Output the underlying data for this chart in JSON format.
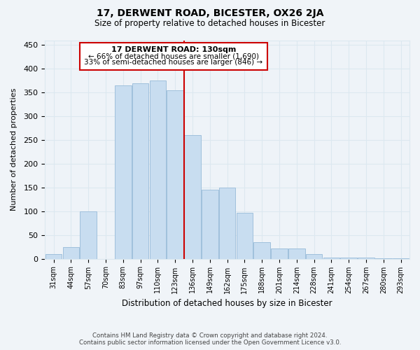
{
  "title": "17, DERWENT ROAD, BICESTER, OX26 2JA",
  "subtitle": "Size of property relative to detached houses in Bicester",
  "xlabel": "Distribution of detached houses by size in Bicester",
  "ylabel": "Number of detached properties",
  "footer_line1": "Contains HM Land Registry data © Crown copyright and database right 2024.",
  "footer_line2": "Contains public sector information licensed under the Open Government Licence v3.0.",
  "bar_labels": [
    "31sqm",
    "44sqm",
    "57sqm",
    "70sqm",
    "83sqm",
    "97sqm",
    "110sqm",
    "123sqm",
    "136sqm",
    "149sqm",
    "162sqm",
    "175sqm",
    "188sqm",
    "201sqm",
    "214sqm",
    "228sqm",
    "241sqm",
    "254sqm",
    "267sqm",
    "280sqm",
    "293sqm"
  ],
  "bar_values": [
    10,
    25,
    100,
    0,
    365,
    370,
    375,
    355,
    260,
    145,
    150,
    97,
    35,
    22,
    22,
    10,
    3,
    2,
    2,
    1,
    1
  ],
  "bar_color": "#c8ddf0",
  "bar_edgecolor": "#a0c0dc",
  "vline_color": "#cc0000",
  "annotation_title": "17 DERWENT ROAD: 130sqm",
  "annotation_line1": "← 66% of detached houses are smaller (1,690)",
  "annotation_line2": "33% of semi-detached houses are larger (846) →",
  "annotation_box_edgecolor": "#cc0000",
  "ylim": [
    0,
    460
  ],
  "yticks": [
    0,
    50,
    100,
    150,
    200,
    250,
    300,
    350,
    400,
    450
  ],
  "background_color": "#f0f4f8",
  "grid_color": "#dce8f0",
  "ax_background": "#eef3f8"
}
